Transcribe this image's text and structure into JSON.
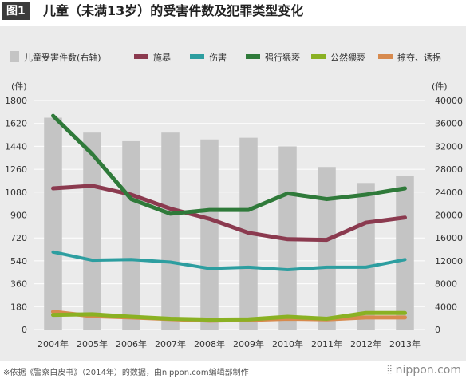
{
  "figure_label": "图1",
  "title": "儿童（未满13岁）的受害件数及犯罪类型变化",
  "footer_note": "※依据《警察白皮书》（2014年）的数据，由nippon.com编辑部制作",
  "brand": "nippon.com",
  "brand_mark": "⦙⦙",
  "chart_data": {
    "type": "bar+line",
    "categories": [
      "2004年",
      "2005年",
      "2006年",
      "2007年",
      "2008年",
      "2009年",
      "2010年",
      "2011年",
      "2012年",
      "2013年"
    ],
    "left_axis": {
      "unit_label": "(件)",
      "ylim": [
        0,
        1800
      ],
      "ticks": [
        0,
        180,
        360,
        540,
        720,
        900,
        1080,
        1260,
        1440,
        1620,
        1800
      ]
    },
    "right_axis": {
      "unit_label": "(件)",
      "ylim": [
        0,
        40000
      ],
      "ticks": [
        0,
        4000,
        8000,
        12000,
        16000,
        20000,
        24000,
        28000,
        32000,
        36000,
        40000
      ]
    },
    "bars": {
      "name": "儿童受害件数(右轴)",
      "axis": "right",
      "color": "#c4c4c4",
      "values": [
        37000,
        34400,
        32900,
        34400,
        33200,
        33500,
        32000,
        28400,
        25600,
        26800
      ]
    },
    "series": [
      {
        "name": "施暴",
        "axis": "left",
        "color": "#8b3a4f",
        "values": [
          1110,
          1130,
          1060,
          950,
          870,
          760,
          710,
          705,
          840,
          880
        ]
      },
      {
        "name": "伤害",
        "axis": "left",
        "color": "#2d9ea0",
        "values": [
          610,
          545,
          550,
          530,
          480,
          490,
          470,
          490,
          490,
          550
        ]
      },
      {
        "name": "强行猥亵",
        "axis": "left",
        "color": "#2f7a3a",
        "values": [
          1680,
          1380,
          1025,
          910,
          940,
          940,
          1070,
          1025,
          1060,
          1110
        ]
      },
      {
        "name": "公然猥亵",
        "axis": "left",
        "color": "#8ab123",
        "values": [
          115,
          120,
          100,
          85,
          78,
          80,
          100,
          85,
          130,
          130
        ]
      },
      {
        "name": "掠夺、诱拐",
        "axis": "left",
        "color": "#d78a4e",
        "values": [
          140,
          105,
          95,
          82,
          70,
          75,
          85,
          80,
          95,
          95
        ]
      }
    ],
    "grid": true,
    "legend_position": "top"
  }
}
